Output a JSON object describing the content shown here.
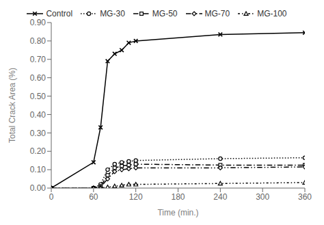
{
  "chart_data": {
    "type": "line",
    "xlabel": "Time (min.)",
    "ylabel": "Total Crack Area (%)",
    "x": [
      0,
      60,
      70,
      80,
      90,
      100,
      110,
      120,
      240,
      360
    ],
    "series": [
      {
        "name": "Control",
        "color": "#000000",
        "marker": "x",
        "line_style": "solid",
        "values": [
          0,
          0.14,
          0.33,
          0.69,
          0.73,
          0.75,
          0.79,
          0.8,
          0.835,
          0.845
        ]
      },
      {
        "name": "MG-30",
        "color": "#000000",
        "marker": "circle",
        "line_style": "dotted",
        "values": [
          0,
          0.0,
          0.02,
          0.1,
          0.13,
          0.14,
          0.145,
          0.15,
          0.16,
          0.165
        ]
      },
      {
        "name": "MG-50",
        "color": "#000000",
        "marker": "square",
        "line_style": "dashdot",
        "values": [
          0,
          0.0,
          0.01,
          0.07,
          0.11,
          0.12,
          0.125,
          0.13,
          0.125,
          0.125
        ]
      },
      {
        "name": "MG-70",
        "color": "#000000",
        "marker": "diamond",
        "line_style": "dashdotdot",
        "values": [
          0,
          0.0,
          0.005,
          0.05,
          0.09,
          0.1,
          0.105,
          0.11,
          0.11,
          0.115
        ]
      },
      {
        "name": "MG-100",
        "color": "#000000",
        "marker": "triangle",
        "line_style": "finedashdotdot",
        "values": [
          0,
          0.0,
          0.0,
          0.005,
          0.01,
          0.015,
          0.02,
          0.02,
          0.025,
          0.03
        ]
      }
    ],
    "xlim": [
      0,
      360
    ],
    "ylim": [
      0,
      0.9
    ],
    "xticks": [
      0,
      60,
      120,
      180,
      240,
      300,
      360
    ],
    "yticks": [
      {
        "value": 0.0,
        "label": "0.00"
      },
      {
        "value": 0.1,
        "label": "0.10"
      },
      {
        "value": 0.2,
        "label": "0.20"
      },
      {
        "value": 0.3,
        "label": "0.30"
      },
      {
        "value": 0.4,
        "label": "0.40"
      },
      {
        "value": 0.5,
        "label": "0.50"
      },
      {
        "value": 0.6,
        "label": "0.60"
      },
      {
        "value": 0.7,
        "label": "0.70"
      },
      {
        "value": 0.8,
        "label": "0.80"
      },
      {
        "value": 0.9,
        "label": "0.90"
      }
    ],
    "grid": false,
    "legend": "top"
  }
}
